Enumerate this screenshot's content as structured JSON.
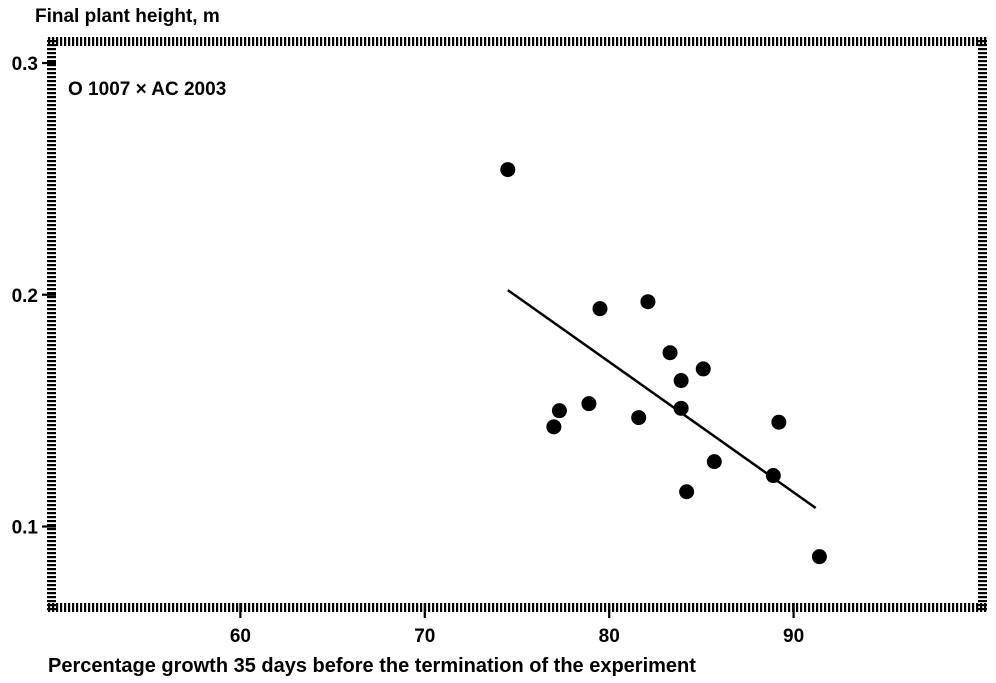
{
  "chart_data": {
    "type": "scatter",
    "title": "",
    "ylabel": "Final plant height, m",
    "xlabel": "Percentage growth 35 days before the termination of the experiment",
    "annotation": "O 1007 × AC 2003",
    "xlim": [
      50,
      100
    ],
    "ylim": [
      0.067,
      0.3
    ],
    "x_ticks": [
      60,
      70,
      80,
      90
    ],
    "x_tick_labels": [
      "60",
      "70",
      "80",
      "90"
    ],
    "y_ticks": [
      0.1,
      0.2,
      0.3
    ],
    "y_tick_labels": [
      "0.1",
      "0.2",
      "0.3"
    ],
    "grid": false,
    "points": [
      {
        "x": 74.5,
        "y": 0.254
      },
      {
        "x": 77.0,
        "y": 0.143
      },
      {
        "x": 77.3,
        "y": 0.15
      },
      {
        "x": 78.9,
        "y": 0.153
      },
      {
        "x": 79.5,
        "y": 0.194
      },
      {
        "x": 81.6,
        "y": 0.147
      },
      {
        "x": 82.1,
        "y": 0.197
      },
      {
        "x": 83.3,
        "y": 0.175
      },
      {
        "x": 83.9,
        "y": 0.163
      },
      {
        "x": 83.9,
        "y": 0.151
      },
      {
        "x": 84.2,
        "y": 0.115
      },
      {
        "x": 85.1,
        "y": 0.168
      },
      {
        "x": 85.7,
        "y": 0.128
      },
      {
        "x": 88.9,
        "y": 0.122
      },
      {
        "x": 89.2,
        "y": 0.145
      },
      {
        "x": 91.4,
        "y": 0.087
      }
    ],
    "trend_line": {
      "x": [
        74.5,
        91.2
      ],
      "y": [
        0.202,
        0.108
      ]
    },
    "colors": {
      "points": "#000000",
      "line": "#000000",
      "frame": "#000000"
    }
  }
}
